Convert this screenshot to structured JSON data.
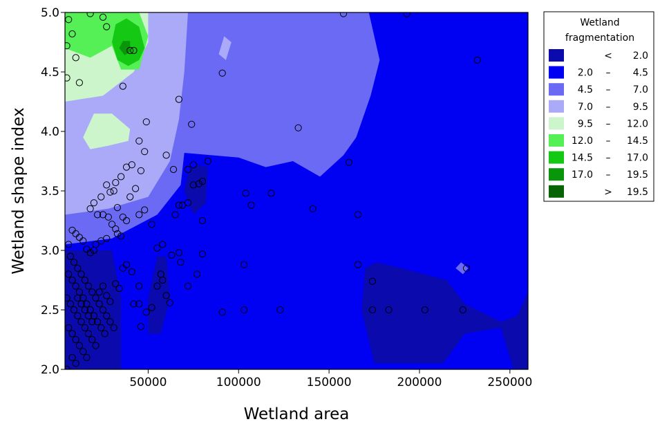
{
  "chart_data": {
    "type": "contour",
    "xlabel": "Wetland area",
    "ylabel": "Wetland shape index",
    "xlim": [
      4000,
      260000
    ],
    "ylim": [
      2.0,
      5.0
    ],
    "x_ticks": [
      50000,
      100000,
      150000,
      200000,
      250000
    ],
    "x_tick_labels": [
      "50000",
      "100000",
      "150000",
      "200000",
      "250000"
    ],
    "y_ticks": [
      2.0,
      2.5,
      3.0,
      3.5,
      4.0,
      4.5,
      5.0
    ],
    "y_tick_labels": [
      "2.0",
      "2.5",
      "3.0",
      "3.5",
      "4.0",
      "4.5",
      "5.0"
    ],
    "legend": {
      "title_lines": [
        "Wetland",
        "fragmentation"
      ],
      "placement": "right",
      "entries": [
        {
          "low": "",
          "sep": "<",
          "high": "2.0",
          "color": "#0a0aad"
        },
        {
          "low": "2.0",
          "sep": "–",
          "high": "4.5",
          "color": "#0000f2"
        },
        {
          "low": "4.5",
          "sep": "–",
          "high": "7.0",
          "color": "#6a6af4"
        },
        {
          "low": "7.0",
          "sep": "–",
          "high": "9.5",
          "color": "#aaaaf8"
        },
        {
          "low": "9.5",
          "sep": "–",
          "high": "12.0",
          "color": "#ccf5cc"
        },
        {
          "low": "12.0",
          "sep": "–",
          "high": "14.5",
          "color": "#55f055"
        },
        {
          "low": "14.5",
          "sep": "–",
          "high": "17.0",
          "color": "#14c814"
        },
        {
          "low": "17.0",
          "sep": "–",
          "high": "19.5",
          "color": "#0a960a"
        },
        {
          "low": "",
          "sep": ">",
          "high": "19.5",
          "color": "#066406"
        }
      ]
    },
    "regions": [
      {
        "level": "<2.0",
        "points": [
          [
            4000,
            2.0
          ],
          [
            35000,
            2.0
          ],
          [
            35000,
            2.6
          ],
          [
            30000,
            3.0
          ],
          [
            4000,
            3.0
          ]
        ]
      },
      {
        "level": "<2.0",
        "points": [
          [
            50000,
            2.3
          ],
          [
            57000,
            2.3
          ],
          [
            62000,
            2.6
          ],
          [
            60000,
            2.95
          ],
          [
            55000,
            2.95
          ],
          [
            50000,
            2.6
          ]
        ]
      },
      {
        "level": "<2.0",
        "points": [
          [
            70000,
            3.5
          ],
          [
            75000,
            3.3
          ],
          [
            82000,
            3.4
          ],
          [
            83000,
            3.7
          ],
          [
            77000,
            3.72
          ],
          [
            72000,
            3.65
          ]
        ]
      },
      {
        "level": "<2.0",
        "points": [
          [
            175000,
            2.05
          ],
          [
            213000,
            2.05
          ],
          [
            225000,
            2.3
          ],
          [
            245000,
            2.35
          ],
          [
            252000,
            2.0
          ],
          [
            260000,
            2.0
          ],
          [
            260000,
            2.65
          ],
          [
            254000,
            2.45
          ],
          [
            245000,
            2.4
          ],
          [
            225000,
            2.55
          ],
          [
            215000,
            2.75
          ],
          [
            190000,
            2.85
          ],
          [
            176000,
            2.9
          ],
          [
            170000,
            2.85
          ],
          [
            168000,
            2.5
          ]
        ]
      },
      {
        "level": "4.5-7.0",
        "points": [
          [
            4000,
            3.05
          ],
          [
            30000,
            3.1
          ],
          [
            55000,
            3.3
          ],
          [
            68000,
            3.55
          ],
          [
            70000,
            3.82
          ],
          [
            100000,
            3.78
          ],
          [
            115000,
            3.7
          ],
          [
            130000,
            3.75
          ],
          [
            145000,
            3.62
          ],
          [
            158000,
            3.8
          ],
          [
            165000,
            3.95
          ],
          [
            173000,
            4.3
          ],
          [
            178000,
            4.6
          ],
          [
            172000,
            5.0
          ],
          [
            4000,
            5.0
          ]
        ]
      },
      {
        "level": "4.5-7.0",
        "points": [
          [
            220000,
            2.85
          ],
          [
            223000,
            2.9
          ],
          [
            227000,
            2.85
          ],
          [
            224000,
            2.8
          ]
        ]
      },
      {
        "level": "7.0-9.5",
        "points": [
          [
            4000,
            3.3
          ],
          [
            28000,
            3.35
          ],
          [
            50000,
            3.45
          ],
          [
            62000,
            3.75
          ],
          [
            67000,
            4.1
          ],
          [
            70000,
            4.5
          ],
          [
            72000,
            5.0
          ],
          [
            4000,
            5.0
          ]
        ]
      },
      {
        "level": "7.0-9.5",
        "points": [
          [
            89000,
            4.65
          ],
          [
            92000,
            4.8
          ],
          [
            96000,
            4.75
          ],
          [
            93000,
            4.6
          ]
        ]
      },
      {
        "level": "9.5-12.0",
        "points": [
          [
            4000,
            4.25
          ],
          [
            25000,
            4.3
          ],
          [
            42000,
            4.5
          ],
          [
            50000,
            4.75
          ],
          [
            50000,
            5.0
          ],
          [
            4000,
            5.0
          ]
        ]
      },
      {
        "level": "9.5-12.0",
        "points": [
          [
            14000,
            3.95
          ],
          [
            20000,
            4.15
          ],
          [
            30000,
            4.15
          ],
          [
            40000,
            4.02
          ],
          [
            39000,
            3.92
          ],
          [
            28000,
            3.88
          ],
          [
            18000,
            3.85
          ]
        ]
      },
      {
        "level": "12.0-14.5",
        "points": [
          [
            4000,
            4.7
          ],
          [
            18000,
            4.62
          ],
          [
            30000,
            4.72
          ],
          [
            35000,
            4.52
          ],
          [
            45000,
            4.52
          ],
          [
            50000,
            4.8
          ],
          [
            45000,
            5.0
          ],
          [
            4000,
            5.0
          ]
        ]
      },
      {
        "level": "14.5-17.0",
        "points": [
          [
            30000,
            4.75
          ],
          [
            33000,
            4.6
          ],
          [
            39000,
            4.55
          ],
          [
            45000,
            4.6
          ],
          [
            48000,
            4.7
          ],
          [
            45000,
            4.88
          ],
          [
            38000,
            4.95
          ],
          [
            32000,
            4.9
          ]
        ]
      },
      {
        "level": "17.0-19.5",
        "points": [
          [
            34000,
            4.7
          ],
          [
            37000,
            4.64
          ],
          [
            40000,
            4.67
          ],
          [
            40000,
            4.76
          ],
          [
            36000,
            4.76
          ]
        ]
      }
    ],
    "points": [
      [
        6000,
        4.94
      ],
      [
        8000,
        4.82
      ],
      [
        5000,
        4.72
      ],
      [
        10000,
        4.62
      ],
      [
        12000,
        4.41
      ],
      [
        5000,
        4.45
      ],
      [
        18000,
        4.99
      ],
      [
        25000,
        4.96
      ],
      [
        27000,
        4.88
      ],
      [
        42000,
        4.68
      ],
      [
        40000,
        4.68
      ],
      [
        36000,
        4.38
      ],
      [
        49000,
        4.08
      ],
      [
        45000,
        3.92
      ],
      [
        48000,
        3.83
      ],
      [
        60000,
        3.8
      ],
      [
        46000,
        3.67
      ],
      [
        41000,
        3.72
      ],
      [
        38000,
        3.7
      ],
      [
        35000,
        3.62
      ],
      [
        32000,
        3.57
      ],
      [
        31000,
        3.5
      ],
      [
        29000,
        3.49
      ],
      [
        27000,
        3.55
      ],
      [
        24000,
        3.45
      ],
      [
        20000,
        3.4
      ],
      [
        18000,
        3.35
      ],
      [
        22000,
        3.3
      ],
      [
        25000,
        3.3
      ],
      [
        28000,
        3.28
      ],
      [
        33000,
        3.36
      ],
      [
        36000,
        3.28
      ],
      [
        38000,
        3.25
      ],
      [
        40000,
        3.45
      ],
      [
        43000,
        3.52
      ],
      [
        45000,
        3.3
      ],
      [
        48000,
        3.34
      ],
      [
        52000,
        3.22
      ],
      [
        30000,
        3.22
      ],
      [
        32000,
        3.18
      ],
      [
        33000,
        3.14
      ],
      [
        35000,
        3.12
      ],
      [
        27000,
        3.1
      ],
      [
        24000,
        3.08
      ],
      [
        21000,
        3.05
      ],
      [
        20000,
        3.0
      ],
      [
        18000,
        2.98
      ],
      [
        16000,
        3.01
      ],
      [
        14000,
        3.08
      ],
      [
        12000,
        3.11
      ],
      [
        10000,
        3.14
      ],
      [
        8000,
        3.17
      ],
      [
        6000,
        3.05
      ],
      [
        7000,
        2.95
      ],
      [
        9000,
        2.9
      ],
      [
        11000,
        2.85
      ],
      [
        13000,
        2.8
      ],
      [
        15000,
        2.75
      ],
      [
        17000,
        2.7
      ],
      [
        19000,
        2.65
      ],
      [
        21000,
        2.6
      ],
      [
        23000,
        2.55
      ],
      [
        25000,
        2.5
      ],
      [
        27000,
        2.45
      ],
      [
        29000,
        2.4
      ],
      [
        31000,
        2.35
      ],
      [
        6000,
        2.8
      ],
      [
        8000,
        2.75
      ],
      [
        10000,
        2.7
      ],
      [
        12000,
        2.65
      ],
      [
        14000,
        2.6
      ],
      [
        16000,
        2.55
      ],
      [
        18000,
        2.5
      ],
      [
        20000,
        2.45
      ],
      [
        22000,
        2.4
      ],
      [
        24000,
        2.35
      ],
      [
        26000,
        2.3
      ],
      [
        5000,
        2.6
      ],
      [
        7000,
        2.55
      ],
      [
        9000,
        2.5
      ],
      [
        11000,
        2.45
      ],
      [
        13000,
        2.4
      ],
      [
        15000,
        2.35
      ],
      [
        17000,
        2.3
      ],
      [
        19000,
        2.25
      ],
      [
        21000,
        2.2
      ],
      [
        6000,
        2.35
      ],
      [
        8000,
        2.3
      ],
      [
        10000,
        2.25
      ],
      [
        12000,
        2.2
      ],
      [
        14000,
        2.15
      ],
      [
        16000,
        2.1
      ],
      [
        8000,
        2.1
      ],
      [
        10000,
        2.05
      ],
      [
        5000,
        2.0
      ],
      [
        11000,
        2.6
      ],
      [
        13000,
        2.55
      ],
      [
        15000,
        2.5
      ],
      [
        17000,
        2.45
      ],
      [
        19000,
        2.4
      ],
      [
        23000,
        2.65
      ],
      [
        25000,
        2.7
      ],
      [
        27000,
        2.62
      ],
      [
        29000,
        2.57
      ],
      [
        32000,
        2.72
      ],
      [
        34000,
        2.68
      ],
      [
        36000,
        2.85
      ],
      [
        38000,
        2.88
      ],
      [
        41000,
        2.82
      ],
      [
        45000,
        2.7
      ],
      [
        42000,
        2.55
      ],
      [
        45000,
        2.55
      ],
      [
        46000,
        2.36
      ],
      [
        49000,
        2.48
      ],
      [
        52000,
        2.52
      ],
      [
        55000,
        2.7
      ],
      [
        57000,
        2.8
      ],
      [
        58000,
        2.75
      ],
      [
        60000,
        2.62
      ],
      [
        62000,
        2.56
      ],
      [
        63000,
        2.96
      ],
      [
        67000,
        2.98
      ],
      [
        68000,
        2.9
      ],
      [
        72000,
        2.7
      ],
      [
        77000,
        2.8
      ],
      [
        80000,
        2.97
      ],
      [
        55000,
        3.02
      ],
      [
        58000,
        3.05
      ],
      [
        65000,
        3.3
      ],
      [
        67000,
        3.38
      ],
      [
        69000,
        3.38
      ],
      [
        72000,
        3.4
      ],
      [
        75000,
        3.55
      ],
      [
        78000,
        3.56
      ],
      [
        80000,
        3.58
      ],
      [
        83000,
        3.75
      ],
      [
        80000,
        3.25
      ],
      [
        64000,
        3.68
      ],
      [
        72000,
        3.68
      ],
      [
        75000,
        3.72
      ],
      [
        67000,
        4.27
      ],
      [
        74000,
        4.06
      ],
      [
        91000,
        4.49
      ],
      [
        104000,
        3.48
      ],
      [
        107000,
        3.38
      ],
      [
        118000,
        3.48
      ],
      [
        133000,
        4.03
      ],
      [
        141000,
        3.35
      ],
      [
        103000,
        2.88
      ],
      [
        103000,
        2.5
      ],
      [
        91000,
        2.48
      ],
      [
        123000,
        2.5
      ],
      [
        158000,
        4.99
      ],
      [
        161000,
        3.74
      ],
      [
        166000,
        3.3
      ],
      [
        166000,
        2.88
      ],
      [
        174000,
        2.74
      ],
      [
        174000,
        2.5
      ],
      [
        183000,
        2.5
      ],
      [
        193000,
        4.99
      ],
      [
        203000,
        2.5
      ],
      [
        224000,
        2.5
      ],
      [
        226000,
        2.85
      ],
      [
        232000,
        4.6
      ]
    ]
  }
}
